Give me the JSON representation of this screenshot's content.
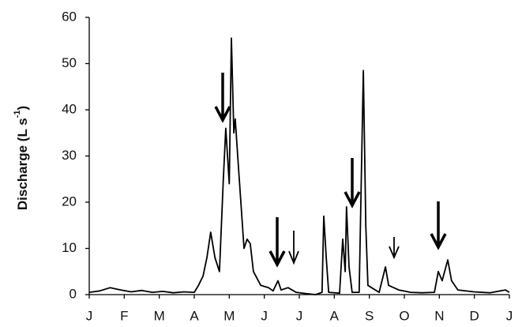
{
  "chart_data": {
    "type": "line",
    "y_label": "Discharge (L s",
    "y_label_superscript": "-1",
    "y_label_end": ")",
    "x": [
      0,
      0.3,
      0.6,
      0.9,
      1.2,
      1.5,
      1.8,
      2.1,
      2.4,
      2.7,
      3.0,
      3.12,
      3.25,
      3.36,
      3.47,
      3.59,
      3.72,
      3.83,
      3.9,
      4.0,
      4.06,
      4.13,
      4.17,
      4.24,
      4.33,
      4.42,
      4.51,
      4.6,
      4.69,
      4.9,
      5.12,
      5.25,
      5.39,
      5.48,
      5.68,
      5.91,
      6.2,
      6.47,
      6.65,
      6.7,
      6.77,
      6.84,
      7.15,
      7.24,
      7.31,
      7.35,
      7.42,
      7.51,
      7.71,
      7.83,
      7.9,
      7.96,
      8.28,
      8.46,
      8.55,
      8.84,
      9.18,
      9.5,
      9.86,
      9.97,
      10.08,
      10.24,
      10.35,
      10.53,
      10.99,
      11.44,
      11.89,
      12
    ],
    "series": [
      {
        "name": "Discharge",
        "color": "#000000",
        "values": [
          0.5,
          0.8,
          1.5,
          1.0,
          0.6,
          0.9,
          0.5,
          0.7,
          0.4,
          0.6,
          0.5,
          2,
          4,
          8,
          13.5,
          8,
          5,
          25,
          36,
          24,
          55.5,
          35,
          38,
          30,
          20,
          10,
          12,
          11,
          5,
          2,
          1.5,
          0.8,
          3,
          1,
          1.5,
          0.5,
          0.2,
          0,
          0.5,
          17,
          8,
          0.5,
          0.3,
          12,
          5,
          19,
          6,
          0.5,
          0.5,
          48.5,
          15,
          2,
          0.5,
          6,
          2,
          1,
          0.5,
          0.4,
          0.5,
          5,
          3,
          7.5,
          3,
          1,
          0.6,
          0.4,
          1,
          0.5
        ]
      }
    ],
    "xlim": [
      0,
      12
    ],
    "xticks": [
      {
        "value": 0,
        "label": "J"
      },
      {
        "value": 1,
        "label": "F"
      },
      {
        "value": 2,
        "label": "M"
      },
      {
        "value": 3,
        "label": "A"
      },
      {
        "value": 4,
        "label": "M"
      },
      {
        "value": 5,
        "label": "J"
      },
      {
        "value": 6,
        "label": "J"
      },
      {
        "value": 7,
        "label": "A"
      },
      {
        "value": 8,
        "label": "S"
      },
      {
        "value": 9,
        "label": "O"
      },
      {
        "value": 10,
        "label": "N"
      },
      {
        "value": 11,
        "label": "D"
      },
      {
        "value": 12,
        "label": "J"
      }
    ],
    "ylim": [
      0,
      60
    ],
    "yticks": [
      0,
      10,
      20,
      30,
      40,
      50,
      60
    ],
    "grid": false
  }
}
